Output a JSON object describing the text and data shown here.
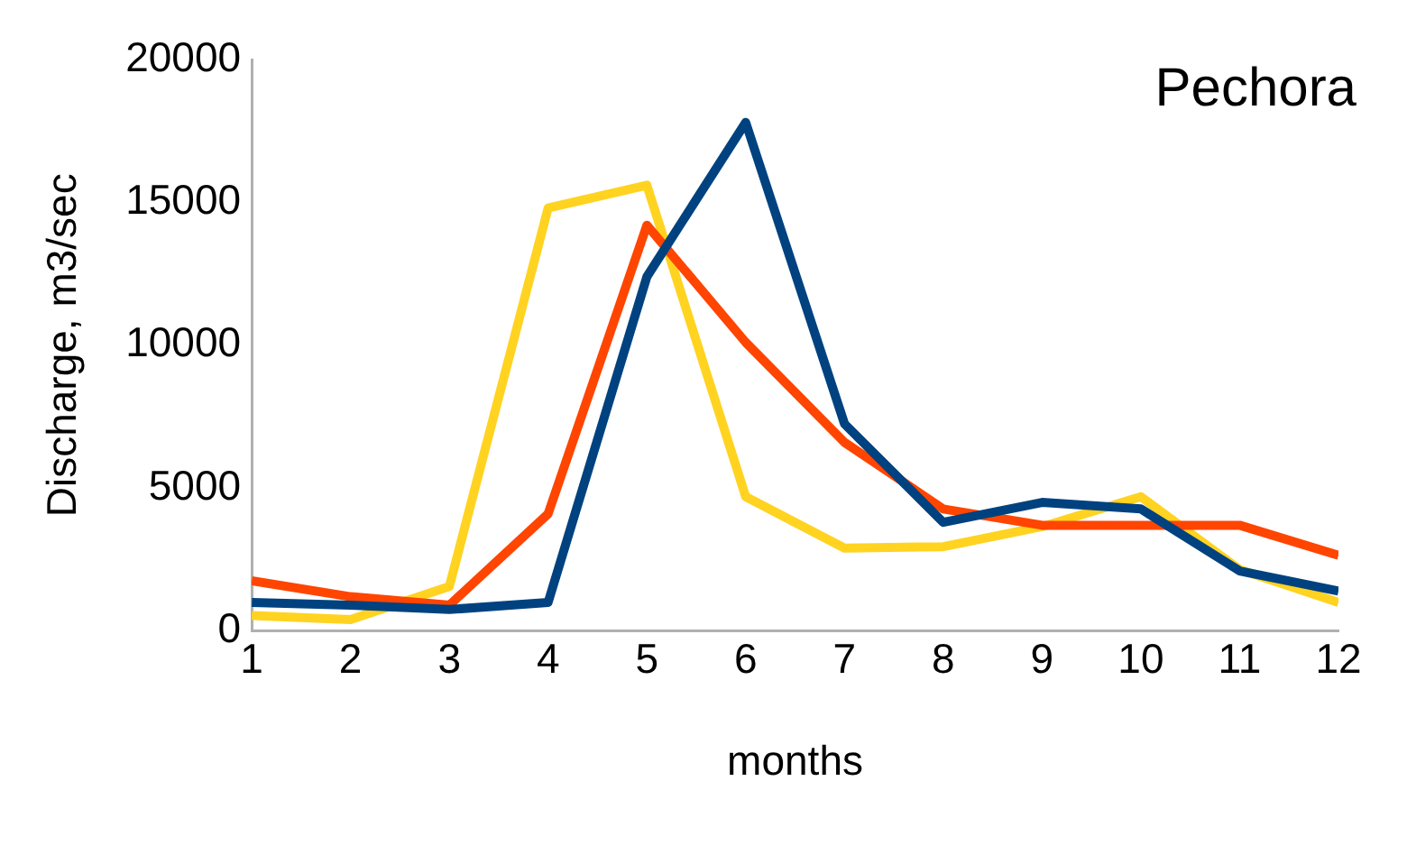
{
  "chart_data": {
    "type": "line",
    "xlabel": "months",
    "ylabel": "Discharge, m3/sec",
    "annotations": [
      "Pechora"
    ],
    "x": [
      1,
      2,
      3,
      4,
      5,
      6,
      7,
      8,
      9,
      10,
      11,
      12
    ],
    "series": [
      {
        "color": "#00427f",
        "values": [
          1000,
          900,
          750,
          1000,
          12400,
          17800,
          7250,
          3800,
          4500,
          4270,
          2100,
          1400
        ]
      },
      {
        "color": "#ff4500",
        "values": [
          1760,
          1200,
          900,
          4100,
          14200,
          10100,
          6600,
          4270,
          3700,
          3700,
          3700,
          2650
        ]
      },
      {
        "color": "#ffd320",
        "values": [
          540,
          400,
          1560,
          14800,
          15600,
          4700,
          2900,
          2950,
          3650,
          4700,
          2150,
          1000
        ]
      }
    ],
    "xlim": [
      1,
      12
    ],
    "xticks": [
      1,
      2,
      3,
      4,
      5,
      6,
      7,
      8,
      9,
      10,
      11,
      12
    ],
    "ylim": [
      0,
      20000
    ],
    "yticks": [
      0,
      5000,
      10000,
      15000,
      20000
    ],
    "grid": false,
    "legend": false,
    "marker": "none",
    "line_style": "solid"
  }
}
